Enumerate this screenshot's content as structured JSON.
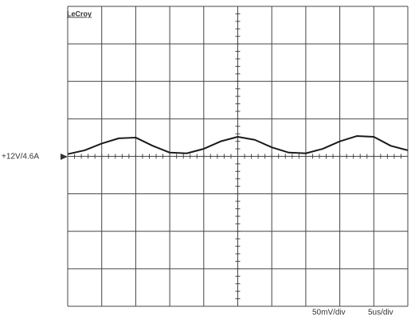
{
  "chart_data": {
    "type": "line",
    "brand": "LeCroy",
    "reference_label": "+12V/4.6A",
    "y_scale_label": "50mV/div",
    "x_scale_label": "5us/div",
    "x": [
      0,
      2.5,
      5,
      7.5,
      10,
      12.5,
      15,
      17.5,
      20,
      22.5,
      25,
      27.5,
      30,
      32.5,
      35,
      37.5,
      40,
      42.5,
      45,
      47.5,
      50
    ],
    "series": [
      {
        "color": "#1a1a1a",
        "values": [
          3,
          8,
          17,
          24,
          25,
          14,
          5,
          4,
          10,
          20,
          26,
          22,
          12,
          5,
          4,
          10,
          20,
          27,
          26,
          14,
          8
        ]
      }
    ],
    "xlim": [
      0,
      50
    ],
    "ylim": [
      -200,
      200
    ]
  }
}
